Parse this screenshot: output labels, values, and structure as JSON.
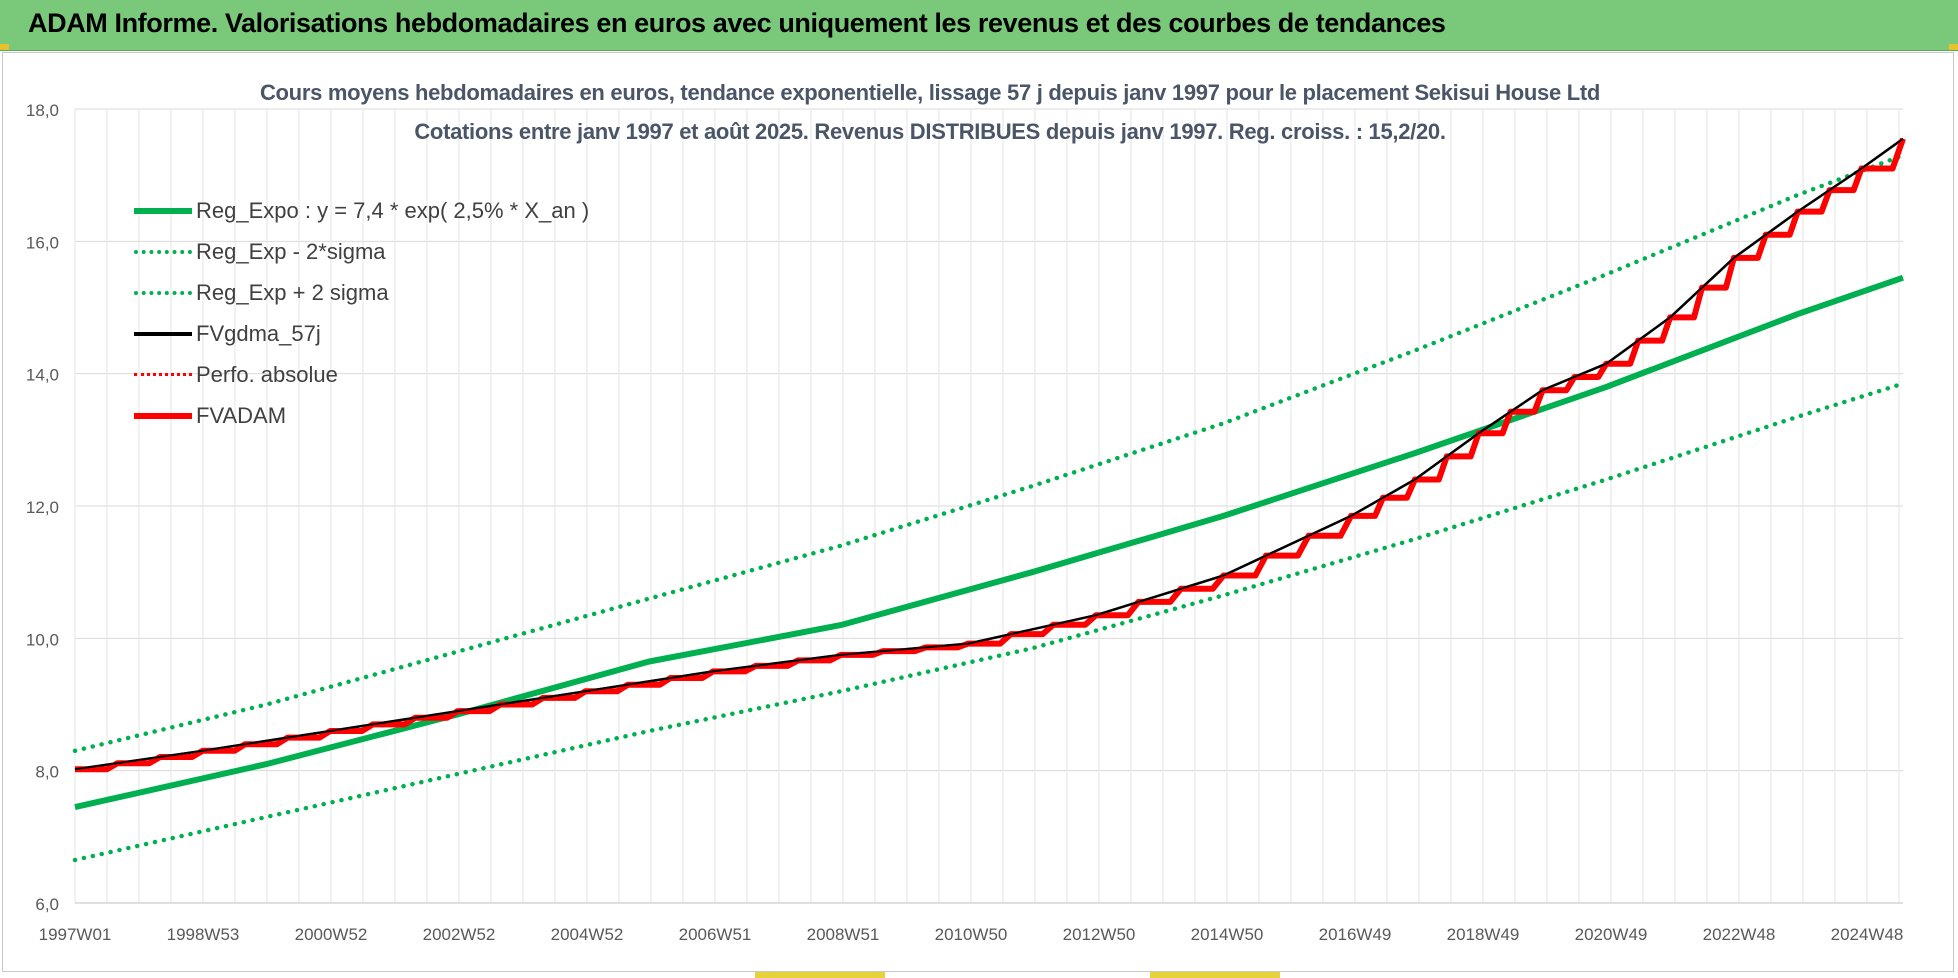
{
  "banner": {
    "title": "ADAM Informe. Valorisations hebdomadaires en euros avec uniquement les revenus et des courbes de tendances"
  },
  "colors": {
    "banner_bg": "#7ac87a",
    "green": "#00b050",
    "red": "#ff0000",
    "black": "#000000",
    "grid": "#d9d9d9"
  },
  "chart_data": {
    "type": "line",
    "title_line1": "Cours moyens hebdomadaires en euros, tendance exponentielle, lissage 57 j depuis janv 1997 pour le placement Sekisui House Ltd",
    "title_line2": "Cotations entre janv 1997 et août 2025.  Revenus DISTRIBUES depuis janv 1997. Reg. croiss. : 15,2/20.",
    "x_tick_labels": [
      "1997W01",
      "1998W53",
      "2000W52",
      "2002W52",
      "2004W52",
      "2006W51",
      "2008W51",
      "2010W50",
      "2012W50",
      "2014W50",
      "2016W49",
      "2018W49",
      "2020W49",
      "2022W48",
      "2024W48"
    ],
    "x_range": [
      1997.0,
      2025.65
    ],
    "y_tick_labels": [
      "6,0",
      "8,0",
      "10,0",
      "12,0",
      "14,0",
      "16,0",
      "18,0"
    ],
    "ylim": [
      6.0,
      18.0
    ],
    "grid": true,
    "legend_position": "top-left",
    "series": [
      {
        "name": "Reg_Expo : y = 7,4 * exp( 2,5% *  X_an )",
        "style": "solid-thick",
        "color": "#00b050",
        "x": [
          1997,
          2000,
          2003,
          2006,
          2009,
          2012,
          2015,
          2018,
          2021,
          2024,
          2025.65
        ],
        "values": [
          7.45,
          8.1,
          8.85,
          9.65,
          10.2,
          11.0,
          11.85,
          12.8,
          13.8,
          14.9,
          15.45
        ]
      },
      {
        "name": "Reg_Exp - 2*sigma",
        "style": "dotted",
        "color": "#00b050",
        "x": [
          1997,
          2000,
          2003,
          2006,
          2009,
          2012,
          2015,
          2018,
          2021,
          2024,
          2025.65
        ],
        "values": [
          6.65,
          7.3,
          7.95,
          8.6,
          9.2,
          9.85,
          10.65,
          11.5,
          12.4,
          13.35,
          13.85
        ]
      },
      {
        "name": "Reg_Exp + 2 sigma",
        "style": "dotted",
        "color": "#00b050",
        "x": [
          1997,
          2000,
          2003,
          2006,
          2009,
          2012,
          2015,
          2018,
          2021,
          2024,
          2025.65
        ],
        "values": [
          8.3,
          9.0,
          9.8,
          10.6,
          11.4,
          12.3,
          13.25,
          14.35,
          15.5,
          16.7,
          17.3
        ]
      },
      {
        "name": "FVgdma_57j",
        "style": "solid",
        "color": "#000000",
        "x": [
          1997,
          1999,
          2001,
          2003,
          2005,
          2007,
          2009,
          2011,
          2013,
          2015,
          2017,
          2018,
          2019,
          2020,
          2021,
          2022,
          2023,
          2024,
          2025,
          2025.65
        ],
        "values": [
          8.02,
          8.3,
          8.6,
          8.9,
          9.2,
          9.5,
          9.75,
          9.92,
          10.35,
          10.95,
          11.85,
          12.4,
          13.1,
          13.75,
          14.15,
          14.85,
          15.75,
          16.45,
          17.1,
          17.55
        ]
      },
      {
        "name": "Perfo. absolue",
        "style": "dotted",
        "color": "#ff0000",
        "x": [],
        "values": []
      },
      {
        "name": "FVADAM",
        "style": "step-thick",
        "color": "#ff0000",
        "x": [
          1997,
          1999,
          2001,
          2003,
          2005,
          2007,
          2009,
          2011,
          2013,
          2015,
          2017,
          2018,
          2019,
          2020,
          2021,
          2022,
          2023,
          2024,
          2025,
          2025.65
        ],
        "values": [
          8.02,
          8.3,
          8.6,
          8.9,
          9.2,
          9.5,
          9.75,
          9.92,
          10.35,
          10.95,
          11.85,
          12.4,
          13.1,
          13.75,
          14.15,
          14.85,
          15.75,
          16.45,
          17.1,
          17.55
        ]
      }
    ]
  }
}
